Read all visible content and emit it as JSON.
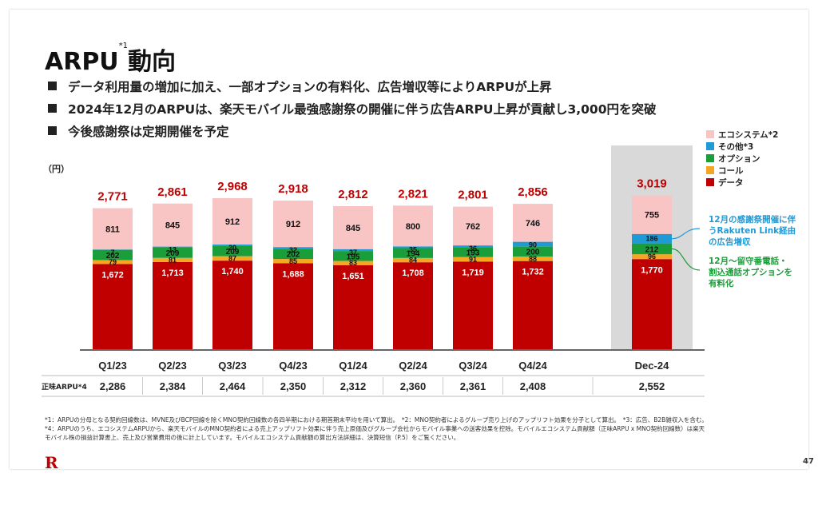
{
  "title": "ARPU",
  "title_sup": "*1",
  "title_suffix": "動向",
  "bullets": [
    "データ利用量の増加に加え、一部オプションの有料化、広告増収等によりARPUが上昇",
    "2024年12月のARPUは、楽天モバイル最強感謝祭の開催に伴う広告ARPU上昇が貢献し3,000円を突破",
    "今後感謝祭は定期開催を予定"
  ],
  "chart_data": {
    "type": "bar",
    "stacked": true,
    "unit_label": "（円）",
    "categories": [
      "Q1/23",
      "Q2/23",
      "Q3/23",
      "Q4/23",
      "Q1/24",
      "Q2/24",
      "Q3/24",
      "Q4/24",
      "Dec-24"
    ],
    "totals": [
      2771,
      2861,
      2968,
      2918,
      2812,
      2821,
      2801,
      2856,
      3019
    ],
    "series": [
      {
        "name": "データ",
        "color": "#c00000",
        "values": [
          1672,
          1713,
          1740,
          1688,
          1651,
          1708,
          1719,
          1732,
          1770
        ]
      },
      {
        "name": "コール",
        "color": "#f5a623",
        "values": [
          79,
          81,
          87,
          85,
          83,
          84,
          91,
          88,
          96
        ]
      },
      {
        "name": "オプション",
        "color": "#1a9e3a",
        "values": [
          202,
          209,
          209,
          202,
          195,
          194,
          193,
          200,
          212
        ]
      },
      {
        "name": "その他*3",
        "color": "#1e9ad6",
        "values": [
          7,
          13,
          20,
          32,
          37,
          35,
          36,
          90,
          186
        ]
      },
      {
        "name": "エコシステム*2",
        "color": "#f9c4c4",
        "values": [
          811,
          845,
          912,
          912,
          845,
          800,
          762,
          746,
          755
        ]
      }
    ],
    "legend": [
      "エコシステム*2",
      "その他*3",
      "オプション",
      "コール",
      "データ"
    ],
    "legend_position": "top-right",
    "highlighted_category": "Dec-24",
    "net_arpu_label": "正味ARPU*4",
    "net_arpu": [
      2286,
      2384,
      2464,
      2350,
      2312,
      2360,
      2361,
      2408,
      2552
    ],
    "annotations": [
      {
        "text": [
          "12月の感謝祭開催に伴",
          "うRakuten Link経由",
          "の広告増収"
        ],
        "color": "#1e9ad6",
        "target": "その他*3"
      },
      {
        "text": [
          "12月～留守番電話・",
          "割込通話オプションを",
          "有料化"
        ],
        "color": "#1a9e3a",
        "target": "オプション"
      }
    ],
    "total_label_color": "#c00000"
  },
  "footnotes": [
    "*1：ARPUの分母となる契約回線数は、MVNE及びBCP回線を除くMNO契約回線数の各四半期における期首期末平均を用いて算出。　*2：MNO契約者によるグループ売り上げのアップリフト効果を分子として算出。　*3：広告、B2B雑収入を含む。",
    "*4：ARPUのうち、エコシステムARPUから、楽天モバイルのMNO契約者による売上アップリフト効果に伴う売上原価及びグループ会社からモバイル事業への送客効果を控除。モバイルエコシステム貢献額（正味ARPU x MNO契約回線数）は楽天",
    "モバイル株の損益計算書上、売上及び営業費用の後に計上しています。モバイルエコシステム貢献額の算出方法詳細は、決算短信（P.5）をご覧ください。"
  ],
  "logo": "R",
  "page_number": "47"
}
